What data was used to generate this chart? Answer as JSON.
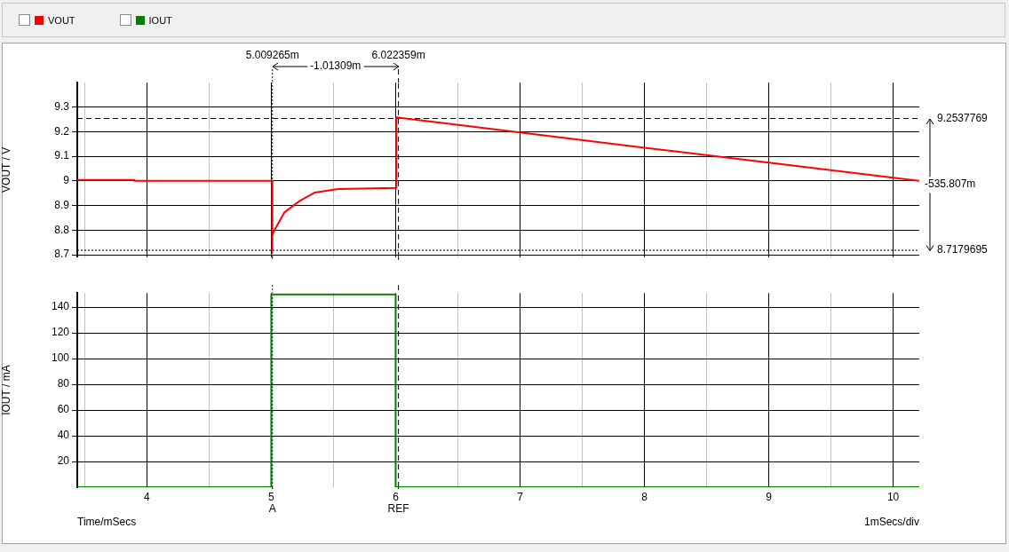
{
  "chart_data": [
    {
      "type": "line",
      "ylabel": "VOUT / V",
      "xlim": [
        3.44,
        10.21
      ],
      "xticks": [
        {
          "value": 3.5,
          "label": null
        },
        4,
        {
          "value": 4.5,
          "label": null
        },
        5,
        {
          "value": 5.5,
          "label": null
        },
        6,
        {
          "value": 6.5,
          "label": null
        },
        7,
        {
          "value": 7.5,
          "label": null
        },
        8,
        {
          "value": 8.5,
          "label": null
        },
        9,
        {
          "value": 9.5,
          "label": null
        },
        10
      ],
      "ylim": [
        8.69,
        9.4
      ],
      "yticks": [
        8.7,
        8.8,
        8.9,
        9,
        9.1,
        9.2,
        9.3
      ],
      "grid": true,
      "legend": "top left",
      "tick_labels": "y",
      "series": [
        {
          "name": "VOUT",
          "color": "#ff0000",
          "x": [
            3.44,
            3.9,
            3.9,
            5.007,
            5.007,
            5.009,
            5.03,
            5.107,
            5.226,
            5.35,
            5.536,
            6.005,
            6.005,
            7,
            8,
            9,
            10.21
          ],
          "values": [
            9.004,
            9.004,
            9.0,
            9.0,
            8.715,
            8.78,
            8.804,
            8.873,
            8.918,
            8.953,
            8.967,
            8.972,
            9.258,
            9.197,
            9.135,
            9.074,
            9.0
          ]
        }
      ],
      "ref_lines": [
        {
          "axis": "x",
          "value": 5.009265,
          "label": "5.009265m",
          "line_style": "dotted"
        },
        {
          "axis": "x",
          "value": 6.022359,
          "label": "6.022359m",
          "line_style": "dashed"
        },
        {
          "axis": "y",
          "value": 9.2537769,
          "label": "9.2537769",
          "line_style": "dashed"
        },
        {
          "axis": "y",
          "value": 8.7179695,
          "label": "8.7179695",
          "line_style": "dotted"
        }
      ],
      "annotations": [
        "-1.01309m",
        "-535.807m"
      ]
    },
    {
      "type": "line",
      "xlabel": "Time/mSecs",
      "ylabel": "IOUT / mA",
      "xlim": [
        3.44,
        10.21
      ],
      "xticks": [
        {
          "value": 3.5,
          "label": null
        },
        4,
        {
          "value": 4.5,
          "label": null
        },
        5,
        {
          "value": 5.5,
          "label": null
        },
        6,
        {
          "value": 6.5,
          "label": null
        },
        7,
        {
          "value": 7.5,
          "label": null
        },
        8,
        {
          "value": 8.5,
          "label": null
        },
        9,
        {
          "value": 9.5,
          "label": null
        },
        10
      ],
      "ylim": [
        0,
        151
      ],
      "yticks": [
        20,
        40,
        60,
        80,
        100,
        120,
        140
      ],
      "grid": true,
      "legend": "top left",
      "series": [
        {
          "name": "IOUT",
          "color": "#008000",
          "x": [
            3.44,
            5.0,
            5.0,
            6.0,
            6.0,
            10.21
          ],
          "values": [
            0,
            0,
            150,
            150,
            0,
            0
          ]
        }
      ],
      "ref_lines": [
        {
          "axis": "x",
          "value": 5.009265,
          "label": "A",
          "line_style": "dotted"
        },
        {
          "axis": "x",
          "value": 6.022359,
          "label": "REF",
          "line_style": "dashed"
        }
      ],
      "annotations": [
        "1mSecs/div"
      ]
    }
  ]
}
